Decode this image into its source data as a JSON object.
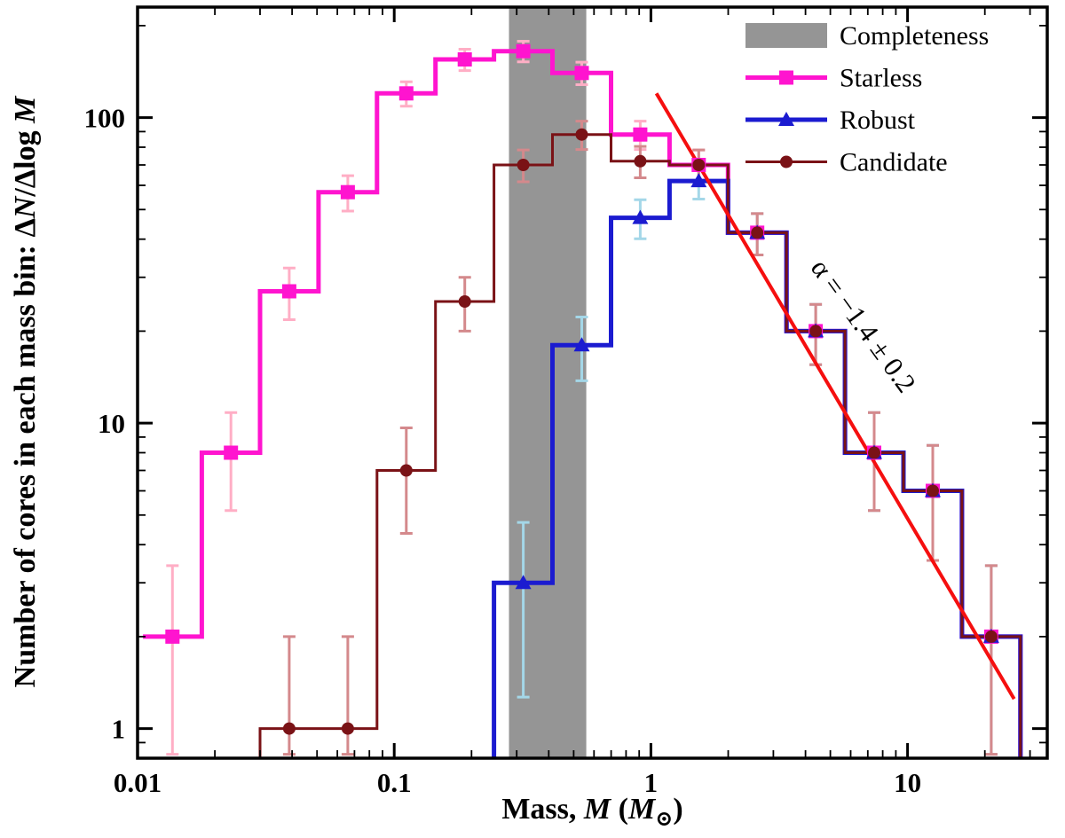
{
  "figure": {
    "ylabel": {
      "prefix": "Number of cores in each mass bin: Δ",
      "n": "N",
      "mid": "/Δlog ",
      "m": "M"
    },
    "xlabel": {
      "prefix": "Mass, ",
      "m1": "M",
      "mid": " (",
      "m2": "M",
      "sun": "⊙",
      "suffix": ")"
    }
  },
  "chart_data": {
    "type": "step-histogram",
    "title": "",
    "xlabel": "Mass, M (M_sun)",
    "ylabel": "Number of cores in each mass bin: dN/dlogM",
    "x_scale": "log",
    "y_scale": "log",
    "grid": false,
    "xlim": [
      0.01,
      35
    ],
    "ylim": [
      0.8,
      230
    ],
    "x_major_ticks": [
      0.01,
      0.1,
      1,
      10
    ],
    "x_major_labels": [
      "0.01",
      "0.1",
      "1",
      "10"
    ],
    "y_major_ticks": [
      1,
      10,
      100
    ],
    "y_major_labels": [
      "1",
      "10",
      "100"
    ],
    "completeness_band": {
      "label": "Completeness",
      "x_range": [
        0.28,
        0.56
      ],
      "color": "#959595"
    },
    "bin_edges": [
      0.0105,
      0.0178,
      0.03,
      0.0507,
      0.0857,
      0.1448,
      0.2447,
      0.4136,
      0.699,
      1.1813,
      1.9964,
      3.374,
      5.702,
      9.637,
      16.29,
      27.52
    ],
    "series": [
      {
        "name": "Starless",
        "marker": "square",
        "color": "#ff14cf",
        "err_color": "#ffaec5",
        "line_width": 5,
        "rise_from_zero": false,
        "values": [
          2,
          8,
          27,
          57,
          120,
          155,
          165,
          140,
          88,
          70,
          42,
          20,
          8,
          6,
          2
        ]
      },
      {
        "name": "Robust",
        "marker": "triangle",
        "color": "#1b1bd0",
        "err_color": "#a4d7e8",
        "line_width": 5,
        "rise_from_zero": true,
        "values": [
          null,
          null,
          null,
          null,
          null,
          null,
          3,
          18,
          47,
          62,
          42,
          20,
          8,
          6,
          2
        ]
      },
      {
        "name": "Candidate",
        "marker": "circle",
        "color": "#7a1216",
        "err_color": "#d4898c",
        "line_width": 3,
        "rise_from_zero": true,
        "values": [
          null,
          null,
          1,
          1,
          7,
          25,
          70,
          88,
          72,
          70,
          42,
          20,
          8,
          6,
          2
        ]
      }
    ],
    "fit_line": {
      "x": [
        1.05,
        26
      ],
      "y": [
        120,
        1.25
      ],
      "color": "#f50f0f",
      "width": 4,
      "slope": "-1.4 ± 0.2"
    },
    "annotation": {
      "text": "α = −1.4 ± 0.2",
      "x": 6.3,
      "y": 20,
      "rotation_deg": 54
    },
    "legend": {
      "position": "top-right",
      "items": [
        {
          "label": "Completeness",
          "swatch": "band",
          "color": "#959595"
        },
        {
          "label": "Starless",
          "swatch": "line-square",
          "color": "#ff14cf"
        },
        {
          "label": "Robust",
          "swatch": "line-triangle",
          "color": "#1b1bd0"
        },
        {
          "label": "Candidate",
          "swatch": "line-circle",
          "color": "#7a1216"
        }
      ]
    }
  }
}
